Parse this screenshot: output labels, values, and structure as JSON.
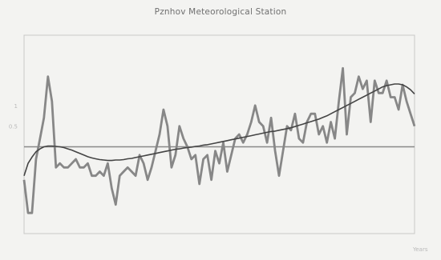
{
  "title": "Pznhov Meteorological Station",
  "chart_data": {
    "type": "line",
    "title": "Pznhov Meteorological Station",
    "x": [
      1,
      2,
      3,
      4,
      5,
      6,
      7,
      8,
      9,
      10,
      11,
      12,
      13,
      14,
      15,
      16,
      17,
      18,
      19,
      20,
      21,
      22,
      23,
      24,
      25,
      26,
      27,
      28,
      29,
      30,
      31,
      32,
      33,
      34,
      35,
      36,
      37,
      38,
      39,
      40,
      41,
      42,
      43,
      44,
      45,
      46,
      47,
      48,
      49,
      50,
      51,
      52,
      53,
      54,
      55,
      56,
      57,
      58,
      59,
      60,
      61,
      62,
      63,
      64,
      65,
      66,
      67,
      68,
      69,
      70,
      71,
      72,
      73,
      74,
      75,
      76,
      77,
      78,
      79,
      80,
      81,
      82,
      83,
      84,
      85,
      86,
      87,
      88,
      89,
      90,
      91,
      92,
      93,
      94,
      95,
      96,
      97,
      98,
      99
    ],
    "series": [
      {
        "values": [
          -0.8,
          -1.6,
          -1.6,
          -0.3,
          0.2,
          0.7,
          1.7,
          1.1,
          -0.5,
          -0.4,
          -0.5,
          -0.5,
          -0.4,
          -0.3,
          -0.5,
          -0.5,
          -0.4,
          -0.7,
          -0.7,
          -0.6,
          -0.7,
          -0.4,
          -1.0,
          -1.4,
          -0.7,
          -0.6,
          -0.5,
          -0.6,
          -0.7,
          -0.2,
          -0.4,
          -0.8,
          -0.5,
          -0.1,
          0.3,
          0.9,
          0.5,
          -0.5,
          -0.2,
          0.5,
          0.2,
          0.0,
          -0.3,
          -0.2,
          -0.9,
          -0.3,
          -0.2,
          -0.8,
          -0.1,
          -0.4,
          0.1,
          -0.6,
          -0.2,
          0.2,
          0.3,
          0.1,
          0.3,
          0.6,
          1.0,
          0.6,
          0.5,
          0.1,
          0.7,
          -0.1,
          -0.7,
          -0.1,
          0.5,
          0.4,
          0.8,
          0.2,
          0.1,
          0.6,
          0.8,
          0.8,
          0.3,
          0.5,
          0.1,
          0.6,
          0.2,
          1.1,
          1.9,
          0.3,
          1.2,
          1.3,
          1.7,
          1.4,
          1.6,
          0.6,
          1.6,
          1.3,
          1.3,
          1.6,
          1.2,
          1.2,
          0.9,
          1.5,
          1.1,
          0.8,
          0.5
        ]
      },
      {
        "values": [
          -0.7,
          -0.4,
          -0.25,
          -0.12,
          -0.05,
          0.0,
          0.02,
          0.02,
          0.01,
          0.0,
          -0.02,
          -0.05,
          -0.08,
          -0.12,
          -0.16,
          -0.2,
          -0.24,
          -0.27,
          -0.29,
          -0.31,
          -0.32,
          -0.33,
          -0.33,
          -0.32,
          -0.32,
          -0.31,
          -0.29,
          -0.28,
          -0.26,
          -0.24,
          -0.22,
          -0.2,
          -0.18,
          -0.16,
          -0.14,
          -0.12,
          -0.1,
          -0.08,
          -0.06,
          -0.05,
          -0.03,
          -0.02,
          -0.01,
          0.01,
          0.02,
          0.04,
          0.05,
          0.07,
          0.09,
          0.11,
          0.13,
          0.15,
          0.17,
          0.19,
          0.21,
          0.23,
          0.25,
          0.27,
          0.29,
          0.31,
          0.33,
          0.35,
          0.37,
          0.38,
          0.4,
          0.42,
          0.44,
          0.46,
          0.49,
          0.52,
          0.55,
          0.58,
          0.61,
          0.64,
          0.67,
          0.71,
          0.75,
          0.8,
          0.85,
          0.9,
          0.95,
          1.0,
          1.05,
          1.1,
          1.15,
          1.2,
          1.25,
          1.3,
          1.35,
          1.4,
          1.45,
          1.48,
          1.5,
          1.52,
          1.52,
          1.5,
          1.45,
          1.38,
          1.28
        ]
      }
    ],
    "yticks": [
      1,
      0.5
    ],
    "ytick_labels": [
      "1",
      "0.5"
    ],
    "ylim": [
      -2.1,
      2.7
    ],
    "xlim": [
      1,
      99
    ],
    "reference_line": 0,
    "xlabel_tail": "Years",
    "grid": false,
    "colors": {
      "series": "#878787",
      "trend": "#444444",
      "reference": "#888888",
      "axis": "#c8c8c8",
      "background": "#f3f3f1"
    }
  }
}
